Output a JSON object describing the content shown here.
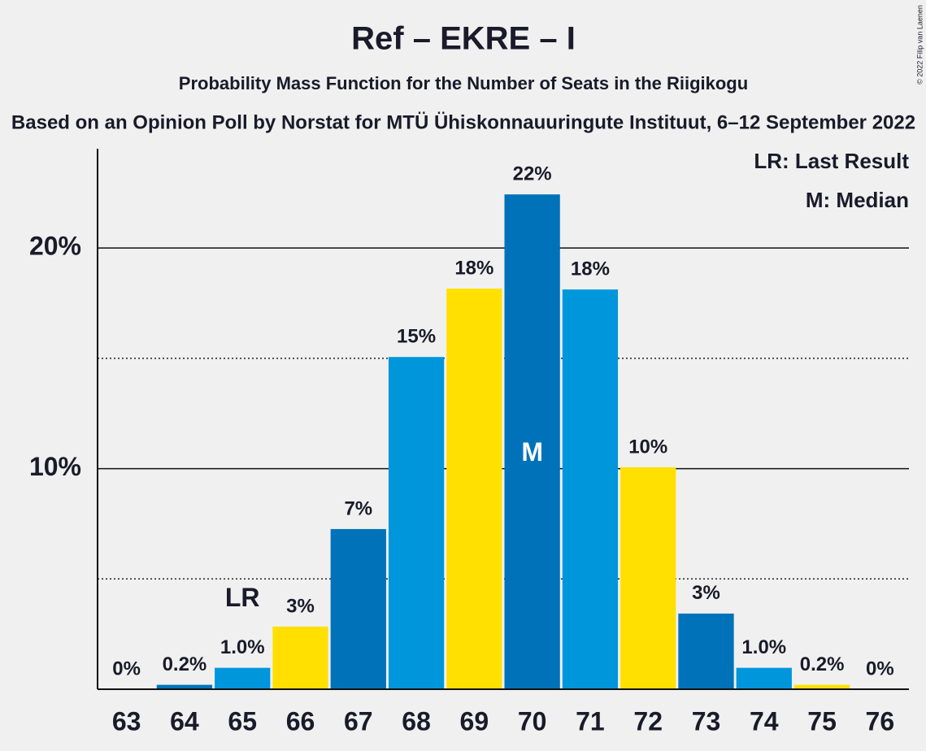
{
  "chart_data": {
    "type": "bar",
    "title": "Ref – EKRE – I",
    "subtitle": "Probability Mass Function for the Number of Seats in the Riigikogu",
    "caption": "Based on an Opinion Poll by Norstat for MTÜ Ühiskonnauuringute Instituut, 6–12 September 2022",
    "copyright": "© 2022 Filip van Laenen",
    "categories": [
      "63",
      "64",
      "65",
      "66",
      "67",
      "68",
      "69",
      "70",
      "71",
      "72",
      "73",
      "74",
      "75",
      "76"
    ],
    "values": [
      0,
      0.2,
      0.97,
      2.84,
      7.26,
      15.06,
      18.16,
      22.43,
      18.12,
      10.06,
      3.43,
      0.97,
      0.2,
      0
    ],
    "value_labels": [
      "0%",
      "0.2%",
      "1.0%",
      "3%",
      "7%",
      "15%",
      "18%",
      "22%",
      "18%",
      "10%",
      "3%",
      "1.0%",
      "0.2%",
      "0%"
    ],
    "colors": [
      "#ffe000",
      "#0072b9",
      "#0096db",
      "#ffe000",
      "#0072b9",
      "#0096db",
      "#ffe000",
      "#0072b9",
      "#0096db",
      "#ffe000",
      "#0072b9",
      "#0096db",
      "#ffe000",
      "#0072b9"
    ],
    "ylim": [
      0,
      24.5
    ],
    "yticks": [
      {
        "value": 10,
        "label": "10%"
      },
      {
        "value": 20,
        "label": "20%"
      }
    ],
    "minor_yticks": [
      5,
      15
    ],
    "grid": true,
    "markers": [
      {
        "label": "LR",
        "category": "65"
      },
      {
        "label": "M",
        "category": "70"
      }
    ],
    "legend": [
      "LR: Last Result",
      "M: Median"
    ]
  }
}
